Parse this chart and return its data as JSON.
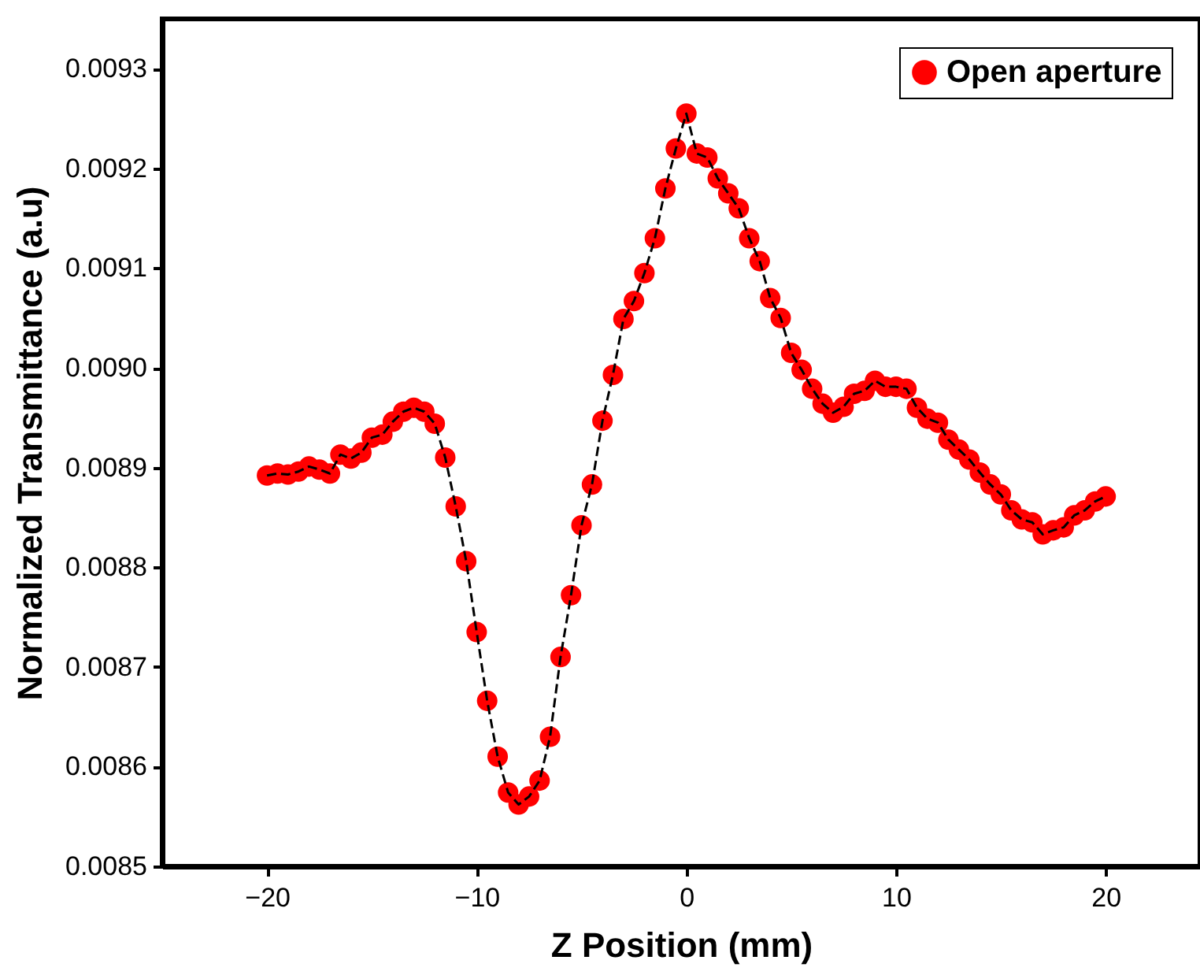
{
  "chart_data": {
    "type": "line",
    "xlabel": "Z Position (mm)",
    "ylabel": "Normalized Transmittance (a.u)",
    "x": [
      -20,
      -19.5,
      -19,
      -18.5,
      -18,
      -17.5,
      -17,
      -16.5,
      -16,
      -15.5,
      -15,
      -14.5,
      -14,
      -13.5,
      -13,
      -12.5,
      -12,
      -11.5,
      -11,
      -10.5,
      -10,
      -9.5,
      -9,
      -8.5,
      -8,
      -7.5,
      -7,
      -6.5,
      -6,
      -5.5,
      -5,
      -4.5,
      -4,
      -3.5,
      -3,
      -2.5,
      -2,
      -1.5,
      -1,
      -0.5,
      0,
      0.5,
      1,
      1.5,
      2,
      2.5,
      3,
      3.5,
      4,
      4.5,
      5,
      5.5,
      6,
      6.5,
      7,
      7.5,
      8,
      8.5,
      9,
      9.5,
      10,
      10.5,
      11,
      11.5,
      12,
      12.5,
      13,
      13.5,
      14,
      14.5,
      15,
      15.5,
      16,
      16.5,
      17,
      17.5,
      18,
      18.5,
      19,
      19.5,
      20
    ],
    "series": [
      {
        "name": "Open aperture",
        "color": "#ff0000",
        "values": [
          0.008892,
          0.008894,
          0.008893,
          0.008896,
          0.008901,
          0.008898,
          0.008894,
          0.008913,
          0.008909,
          0.008915,
          0.00893,
          0.008933,
          0.008946,
          0.008956,
          0.00896,
          0.008956,
          0.008944,
          0.00891,
          0.008861,
          0.008806,
          0.008735,
          0.008666,
          0.00861,
          0.008574,
          0.008562,
          0.00857,
          0.008586,
          0.00863,
          0.00871,
          0.008772,
          0.008842,
          0.008883,
          0.008947,
          0.008993,
          0.009049,
          0.009067,
          0.009095,
          0.00913,
          0.00918,
          0.00922,
          0.009255,
          0.009215,
          0.009211,
          0.00919,
          0.009175,
          0.00916,
          0.00913,
          0.009107,
          0.00907,
          0.00905,
          0.009015,
          0.008998,
          0.008979,
          0.008964,
          0.008955,
          0.008961,
          0.008974,
          0.008977,
          0.008987,
          0.008981,
          0.008981,
          0.008979,
          0.00896,
          0.008949,
          0.008945,
          0.008928,
          0.008918,
          0.008908,
          0.008895,
          0.008883,
          0.008873,
          0.008857,
          0.008848,
          0.008845,
          0.008833,
          0.008837,
          0.00884,
          0.008852,
          0.008857,
          0.008866,
          0.008871
        ]
      }
    ],
    "xlim": [
      -25,
      24.5
    ],
    "xticks": [
      -20,
      -10,
      0,
      10,
      20
    ],
    "ylim": [
      0.0085,
      0.00935
    ],
    "yticks": [
      0.0085,
      0.0086,
      0.0087,
      0.0088,
      0.0089,
      {
        "value": 0.009,
        "label": "0.0090"
      },
      0.0091,
      0.0092,
      0.0093
    ],
    "grid": false,
    "legend": "top right",
    "marker": "circle",
    "line_style": "dashed"
  }
}
